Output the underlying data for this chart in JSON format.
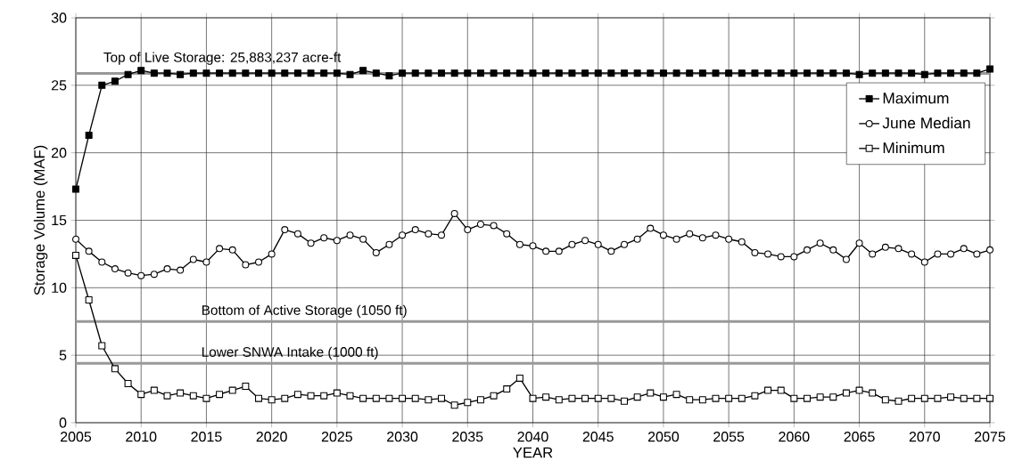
{
  "chart_data": {
    "type": "line",
    "xlabel": "YEAR",
    "ylabel": "Storage Volume (MAF)",
    "x": [
      2005,
      2006,
      2007,
      2008,
      2009,
      2010,
      2011,
      2012,
      2013,
      2014,
      2015,
      2016,
      2017,
      2018,
      2019,
      2020,
      2021,
      2022,
      2023,
      2024,
      2025,
      2026,
      2027,
      2028,
      2029,
      2030,
      2031,
      2032,
      2033,
      2034,
      2035,
      2036,
      2037,
      2038,
      2039,
      2040,
      2041,
      2042,
      2043,
      2044,
      2045,
      2046,
      2047,
      2048,
      2049,
      2050,
      2051,
      2052,
      2053,
      2054,
      2055,
      2056,
      2057,
      2058,
      2059,
      2060,
      2061,
      2062,
      2063,
      2064,
      2065,
      2066,
      2067,
      2068,
      2069,
      2070,
      2071,
      2072,
      2073,
      2074,
      2075
    ],
    "series": [
      {
        "name": "Maximum",
        "color": "#000000",
        "marker": "square",
        "values": [
          17.3,
          21.3,
          25.0,
          25.3,
          25.8,
          26.1,
          25.9,
          25.9,
          25.8,
          25.9,
          25.9,
          25.9,
          25.9,
          25.9,
          25.9,
          25.9,
          25.9,
          25.9,
          25.9,
          25.9,
          25.9,
          25.8,
          26.1,
          25.9,
          25.7,
          25.9,
          25.9,
          25.9,
          25.9,
          25.9,
          25.9,
          25.9,
          25.9,
          25.9,
          25.9,
          25.9,
          25.9,
          25.9,
          25.9,
          25.9,
          25.9,
          25.9,
          25.9,
          25.9,
          25.9,
          25.9,
          25.9,
          25.9,
          25.9,
          25.9,
          25.9,
          25.9,
          25.9,
          25.9,
          25.9,
          25.9,
          25.9,
          25.9,
          25.9,
          25.9,
          25.8,
          25.9,
          25.9,
          25.9,
          25.9,
          25.8,
          25.9,
          25.9,
          25.9,
          25.9,
          26.2
        ]
      },
      {
        "name": "June Median",
        "color": "#000000",
        "marker": "circle",
        "values": [
          13.6,
          12.7,
          11.9,
          11.4,
          11.1,
          10.9,
          11.0,
          11.4,
          11.3,
          12.1,
          11.9,
          12.9,
          12.8,
          11.7,
          11.9,
          12.5,
          14.3,
          14.0,
          13.3,
          13.7,
          13.5,
          13.9,
          13.6,
          12.6,
          13.2,
          13.9,
          14.3,
          14.0,
          13.9,
          15.5,
          14.3,
          14.7,
          14.6,
          14.0,
          13.2,
          13.1,
          12.7,
          12.7,
          13.2,
          13.5,
          13.2,
          12.7,
          13.2,
          13.6,
          14.4,
          13.9,
          13.6,
          14.0,
          13.7,
          13.9,
          13.6,
          13.4,
          12.6,
          12.5,
          12.3,
          12.3,
          12.8,
          13.3,
          12.8,
          12.1,
          13.3,
          12.5,
          13.0,
          12.9,
          12.5,
          11.9,
          12.5,
          12.5,
          12.9,
          12.5,
          12.8
        ]
      },
      {
        "name": "Minimum",
        "color": "#000000",
        "marker": "square",
        "values": [
          12.4,
          9.1,
          5.7,
          4.0,
          2.9,
          2.1,
          2.4,
          2.0,
          2.2,
          2.0,
          1.8,
          2.1,
          2.4,
          2.7,
          1.8,
          1.7,
          1.8,
          2.1,
          2.0,
          2.0,
          2.2,
          2.0,
          1.8,
          1.8,
          1.8,
          1.8,
          1.8,
          1.7,
          1.8,
          1.3,
          1.5,
          1.7,
          2.0,
          2.5,
          3.3,
          1.8,
          1.9,
          1.7,
          1.8,
          1.8,
          1.8,
          1.8,
          1.6,
          1.9,
          2.2,
          1.9,
          2.1,
          1.7,
          1.7,
          1.8,
          1.8,
          1.8,
          2.0,
          2.4,
          2.4,
          1.8,
          1.8,
          1.9,
          1.9,
          2.2,
          2.4,
          2.2,
          1.7,
          1.6,
          1.8,
          1.8,
          1.8,
          1.9,
          1.8,
          1.8,
          1.8
        ]
      }
    ],
    "xlim": [
      2005,
      2075
    ],
    "xticks": [
      2005,
      2010,
      2015,
      2020,
      2025,
      2030,
      2035,
      2040,
      2045,
      2050,
      2055,
      2060,
      2065,
      2070,
      2075
    ],
    "ylim": [
      0,
      30
    ],
    "yticks": [
      0,
      5,
      10,
      15,
      20,
      25,
      30
    ],
    "ref_lines": [
      {
        "axis": "y",
        "value": 25.883237,
        "label": "Top of Live Storage: 25,883,237 acre-ft",
        "color": "#999999"
      },
      {
        "axis": "y",
        "value": 7.5,
        "label": "Bottom of Active Storage (1050 ft)",
        "color": "#999999"
      },
      {
        "axis": "y",
        "value": 4.4,
        "label": "Lower SNWA Intake (1000 ft)",
        "color": "#999999"
      }
    ],
    "grid": true,
    "legend": "right",
    "line_style": "solid"
  }
}
